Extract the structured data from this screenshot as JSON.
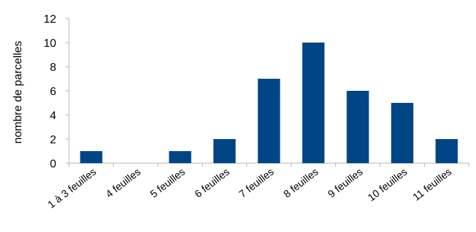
{
  "chart_data": {
    "type": "bar",
    "title": "",
    "xlabel": "",
    "ylabel": "nombre de parcelles",
    "ylim": [
      0,
      12
    ],
    "yticks": [
      0,
      2,
      4,
      6,
      8,
      10,
      12
    ],
    "grid": false,
    "legend": "none",
    "categories": [
      "1 à 3 feuilles",
      "4 feuilles",
      "5 feuilles",
      "6 feuilles",
      "7 feuilles",
      "8 feuilles",
      "9 feuilles",
      "10 feuilles",
      "11 feuilles"
    ],
    "values": [
      1,
      0,
      1,
      2,
      7,
      10,
      6,
      5,
      2
    ],
    "colors": {
      "bar": "#004586",
      "axis": "#b3b3b3"
    }
  }
}
